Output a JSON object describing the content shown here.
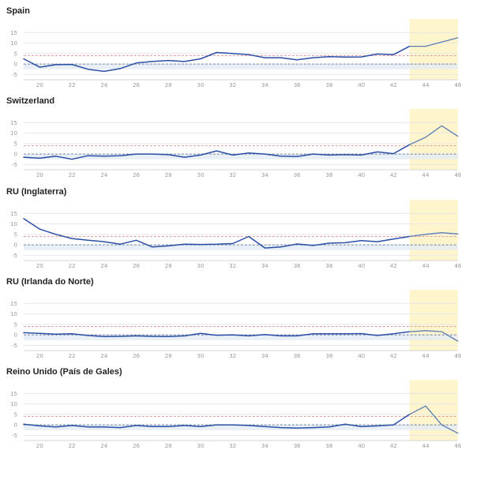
{
  "colors": {
    "line": "#2a4ea6",
    "forecast_line": "#5b7db4",
    "highlight": "#fff5cc",
    "threshold": "#e9a0a0",
    "baseline": "#7a8aa6",
    "band": "#e4ebf4",
    "grid": "#e6e6e6",
    "tick_text": "#9a9a9a"
  },
  "chart_data": [
    {
      "type": "line",
      "title": "Spain",
      "x_ticks": [
        "20",
        "22",
        "24",
        "26",
        "28",
        "30",
        "32",
        "34",
        "36",
        "38",
        "40",
        "42",
        "44",
        "46"
      ],
      "y_ticks": [
        "15",
        "10",
        "5",
        "0",
        "-5"
      ],
      "xlim": [
        19,
        46
      ],
      "ylim": [
        -7.5,
        17
      ],
      "threshold": 4,
      "baseline": 0,
      "band": [
        -2.5,
        0
      ],
      "highlight_range": [
        43,
        46
      ],
      "series": [
        {
          "x": [
            19,
            20,
            21,
            22,
            23,
            24,
            25,
            26,
            27,
            28,
            29,
            30,
            31,
            32,
            33,
            34,
            35,
            36,
            37,
            38,
            39,
            40,
            41,
            42,
            43
          ],
          "values": [
            2.5,
            -1.5,
            -0.3,
            -0.2,
            -2.5,
            -3.5,
            -2.2,
            0.5,
            1.2,
            1.7,
            1.2,
            2.5,
            5.5,
            5.0,
            4.5,
            3.0,
            3.0,
            2.0,
            3.0,
            3.5,
            3.3,
            3.4,
            4.8,
            4.5,
            8.5
          ]
        },
        {
          "forecast": true,
          "x": [
            43,
            44,
            45,
            46
          ],
          "values": [
            8.5,
            8.5,
            10.5,
            12.5
          ]
        }
      ]
    },
    {
      "type": "line",
      "title": "Switzerland",
      "x_ticks": [
        "20",
        "22",
        "24",
        "26",
        "28",
        "30",
        "32",
        "34",
        "36",
        "38",
        "40",
        "42",
        "44",
        "46"
      ],
      "y_ticks": [
        "15",
        "10",
        "5",
        "0",
        "-5"
      ],
      "xlim": [
        19,
        46
      ],
      "ylim": [
        -7.5,
        17
      ],
      "threshold": 4,
      "baseline": 0,
      "band": [
        -2.5,
        0
      ],
      "highlight_range": [
        43,
        46
      ],
      "series": [
        {
          "x": [
            19,
            20,
            21,
            22,
            23,
            24,
            25,
            26,
            27,
            28,
            29,
            30,
            31,
            32,
            33,
            34,
            35,
            36,
            37,
            38,
            39,
            40,
            41,
            42,
            43
          ],
          "values": [
            -1.5,
            -2.0,
            -1.0,
            -2.5,
            -0.8,
            -1.0,
            -0.8,
            0.0,
            0.0,
            -0.3,
            -1.5,
            -0.5,
            1.5,
            -0.5,
            0.5,
            0.0,
            -1.0,
            -1.2,
            0.0,
            -0.5,
            -0.3,
            -0.5,
            1.0,
            0.2,
            4.5
          ]
        },
        {
          "forecast": true,
          "x": [
            43,
            44,
            45,
            46
          ],
          "values": [
            4.5,
            8.0,
            13.5,
            8.5
          ]
        }
      ]
    },
    {
      "type": "line",
      "title": "RU (Inglaterra)",
      "x_ticks": [
        "20",
        "22",
        "24",
        "26",
        "28",
        "30",
        "32",
        "34",
        "36",
        "38",
        "40",
        "42",
        "44",
        "46"
      ],
      "y_ticks": [
        "15",
        "10",
        "5",
        "0",
        "-5"
      ],
      "xlim": [
        19,
        46
      ],
      "ylim": [
        -7.5,
        17
      ],
      "threshold": 4,
      "baseline": 0,
      "band": [
        -2.5,
        0
      ],
      "highlight_range": [
        43,
        46
      ],
      "series": [
        {
          "x": [
            19,
            20,
            21,
            22,
            23,
            24,
            25,
            26,
            27,
            28,
            29,
            30,
            31,
            32,
            33,
            34,
            35,
            36,
            37,
            38,
            39,
            40,
            41,
            42,
            43
          ],
          "values": [
            12.5,
            7.5,
            5.0,
            3.0,
            2.2,
            1.5,
            0.3,
            2.2,
            -1.0,
            -0.5,
            0.3,
            0.2,
            0.3,
            0.6,
            4.0,
            -1.5,
            -1.0,
            0.4,
            -0.3,
            0.8,
            1.0,
            2.0,
            1.5,
            2.8,
            4.0
          ]
        },
        {
          "forecast": true,
          "x": [
            43,
            44,
            45,
            46
          ],
          "values": [
            4.0,
            5.0,
            5.8,
            5.2
          ]
        }
      ]
    },
    {
      "type": "line",
      "title": "RU (Irlanda do Norte)",
      "x_ticks": [
        "20",
        "22",
        "24",
        "26",
        "28",
        "30",
        "32",
        "34",
        "36",
        "38",
        "40",
        "42",
        "44",
        "46"
      ],
      "y_ticks": [
        "15",
        "10",
        "5",
        "0",
        "-5"
      ],
      "xlim": [
        19,
        46
      ],
      "ylim": [
        -7.5,
        17
      ],
      "threshold": 4,
      "baseline": 0,
      "band": [
        -2.5,
        0
      ],
      "highlight_range": [
        43,
        46
      ],
      "series": [
        {
          "x": [
            19,
            20,
            21,
            22,
            23,
            24,
            25,
            26,
            27,
            28,
            29,
            30,
            31,
            32,
            33,
            34,
            35,
            36,
            37,
            38,
            39,
            40,
            41,
            42,
            43
          ],
          "values": [
            1.0,
            0.7,
            0.3,
            0.5,
            -0.3,
            -0.8,
            -0.7,
            -0.5,
            -0.7,
            -0.8,
            -0.5,
            0.7,
            -0.2,
            0.0,
            -0.5,
            0.1,
            -0.5,
            -0.5,
            0.5,
            0.5,
            0.5,
            0.6,
            -0.3,
            0.5,
            1.5
          ]
        },
        {
          "forecast": true,
          "x": [
            43,
            44,
            45,
            46
          ],
          "values": [
            1.5,
            2.0,
            1.5,
            -3.0
          ]
        }
      ]
    },
    {
      "type": "line",
      "title": "Reino Unido (País de Gales)",
      "x_ticks": [
        "20",
        "22",
        "24",
        "26",
        "28",
        "30",
        "32",
        "34",
        "36",
        "38",
        "40",
        "42",
        "44",
        "46"
      ],
      "y_ticks": [
        "15",
        "10",
        "5",
        "0",
        "-5"
      ],
      "xlim": [
        19,
        46
      ],
      "ylim": [
        -7.5,
        17
      ],
      "threshold": 4,
      "baseline": 0,
      "band": [
        -2.5,
        0
      ],
      "highlight_range": [
        43,
        46
      ],
      "series": [
        {
          "x": [
            19,
            20,
            21,
            22,
            23,
            24,
            25,
            26,
            27,
            28,
            29,
            30,
            31,
            32,
            33,
            34,
            35,
            36,
            37,
            38,
            39,
            40,
            41,
            42,
            43
          ],
          "values": [
            0.3,
            -0.5,
            -1.0,
            -0.3,
            -1.0,
            -1.0,
            -1.3,
            -0.3,
            -0.8,
            -0.8,
            -0.3,
            -0.8,
            0.0,
            0.0,
            -0.3,
            -0.8,
            -1.3,
            -1.5,
            -1.3,
            -1.0,
            0.3,
            -0.8,
            -0.5,
            0.0,
            5.0
          ]
        },
        {
          "forecast": true,
          "x": [
            43,
            44,
            45,
            46
          ],
          "values": [
            5.0,
            9.0,
            0.0,
            -4.0
          ]
        }
      ]
    }
  ]
}
